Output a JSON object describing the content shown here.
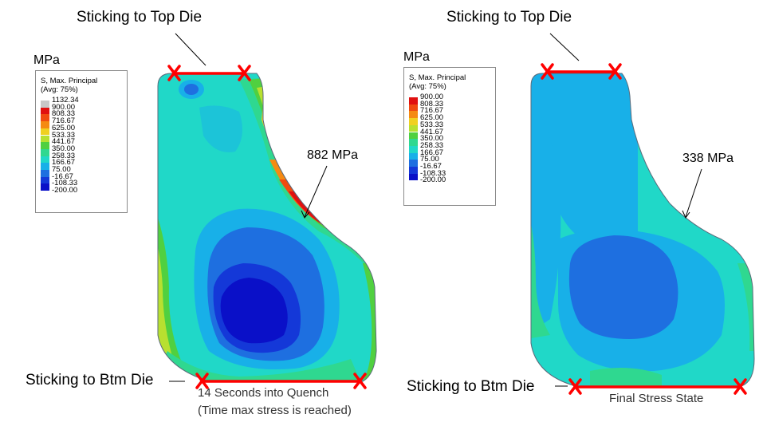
{
  "left": {
    "top_label": "Sticking to Top Die",
    "btm_label": "Sticking to Btm Die",
    "unit": "MPa",
    "legend_title": "S, Max. Principal",
    "legend_subtitle": "(Avg: 75%)",
    "legend_values": [
      "1132.34",
      "900.00",
      "808.33",
      "716.67",
      "625.00",
      "533.33",
      "441.67",
      "350.00",
      "258.33",
      "166.67",
      "75.00",
      "-16.67",
      "-108.33",
      "-200.00"
    ],
    "callout": "882 MPa",
    "caption_line1": "14 Seconds into Quench",
    "caption_line2": "(Time max stress is reached)"
  },
  "right": {
    "top_label": "Sticking to Top Die",
    "btm_label": "Sticking to Btm Die",
    "unit": "MPa",
    "legend_title": "S, Max. Principal",
    "legend_subtitle": "(Avg: 75%)",
    "legend_values": [
      "900.00",
      "808.33",
      "716.67",
      "625.00",
      "533.33",
      "441.67",
      "350.00",
      "258.33",
      "166.67",
      "75.00",
      "-16.67",
      "-108.33",
      "-200.00"
    ],
    "callout": "338 MPa",
    "caption": "Final Stress State"
  },
  "colors": {
    "grey": "#c8c8c8",
    "red": "#e01010",
    "orange_red": "#f04a10",
    "orange": "#f58a12",
    "yellow": "#f0d020",
    "yellow_green": "#b8e030",
    "green": "#50d040",
    "light_green": "#2fd890",
    "cyan": "#20d8c8",
    "sky": "#18b0e8",
    "blue": "#1e6fe0",
    "dark_blue": "#1438d8",
    "navy": "#0a10c8",
    "marker": "#ff0000"
  }
}
